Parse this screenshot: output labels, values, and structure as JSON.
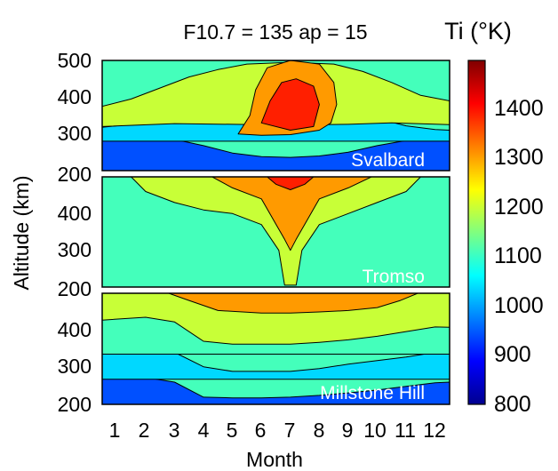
{
  "chart_data": {
    "type": "heatmap",
    "title": "F10.7 = 135  ap = 15",
    "colorbar_label": "Ti (°K)",
    "colorbar_ticks": [
      "800",
      "900",
      "1000",
      "1100",
      "1200",
      "1300",
      "1400"
    ],
    "colorbar_range": [
      800,
      1490
    ],
    "xlabel": "Month",
    "ylabel": "Altitude (km)",
    "x_ticks": [
      "1",
      "2",
      "3",
      "4",
      "5",
      "6",
      "7",
      "8",
      "9",
      "10",
      "11",
      "12"
    ],
    "xlim": [
      0.5,
      12.5
    ],
    "level_colors": [
      "#00008f",
      "#0050ff",
      "#00d8ff",
      "#44ffbb",
      "#c8ff37",
      "#ff9a00",
      "#ff1f00"
    ],
    "panels": [
      {
        "station": "Svalbard",
        "y_ticks": [
          "500",
          "400",
          "300",
          "200"
        ],
        "ylim": [
          200,
          500
        ],
        "bands": [
          {
            "level": "#0050ff",
            "points": [
              [
                0.5,
                200
              ],
              [
                0.5,
                295
              ],
              [
                2,
                290
              ],
              [
                3,
                285
              ],
              [
                4,
                268
              ],
              [
                5,
                248
              ],
              [
                6,
                238
              ],
              [
                7,
                236
              ],
              [
                8,
                240
              ],
              [
                9,
                250
              ],
              [
                10,
                268
              ],
              [
                11,
                282
              ],
              [
                12,
                288
              ],
              [
                12.5,
                290
              ],
              [
                12.5,
                200
              ]
            ]
          },
          {
            "level": "#00d8ff",
            "points": [
              [
                0.5,
                280
              ],
              [
                0.5,
                318
              ],
              [
                2,
                330
              ],
              [
                3,
                345
              ],
              [
                4,
                352
              ],
              [
                5,
                350
              ],
              [
                6,
                345
              ],
              [
                7,
                342
              ],
              [
                8,
                345
              ],
              [
                9,
                350
              ],
              [
                10,
                342
              ],
              [
                11,
                322
              ],
              [
                12,
                312
              ],
              [
                12.5,
                310
              ],
              [
                12.5,
                280
              ]
            ]
          },
          {
            "level": "#c8ff37",
            "points": [
              [
                0.5,
                375
              ],
              [
                1.5,
                395
              ],
              [
                2.5,
                425
              ],
              [
                3.5,
                455
              ],
              [
                4.5,
                475
              ],
              [
                5.5,
                490
              ],
              [
                7,
                495
              ],
              [
                8.5,
                490
              ],
              [
                9.5,
                470
              ],
              [
                10.5,
                440
              ],
              [
                11.5,
                405
              ],
              [
                12.5,
                390
              ],
              [
                12.5,
                325
              ],
              [
                10.5,
                330
              ],
              [
                9,
                326
              ],
              [
                7,
                324
              ],
              [
                5,
                326
              ],
              [
                3,
                328
              ],
              [
                0.5,
                320
              ]
            ]
          },
          {
            "level": "#ff9a00",
            "points": [
              [
                5.2,
                300
              ],
              [
                5.6,
                350
              ],
              [
                5.8,
                420
              ],
              [
                6.2,
                480
              ],
              [
                7,
                500
              ],
              [
                8,
                490
              ],
              [
                8.5,
                440
              ],
              [
                8.6,
                380
              ],
              [
                8.4,
                330
              ],
              [
                8,
                310
              ],
              [
                7,
                298
              ],
              [
                6,
                296
              ]
            ]
          },
          {
            "level": "#ff1f00",
            "points": [
              [
                6,
                330
              ],
              [
                6.3,
                390
              ],
              [
                6.7,
                440
              ],
              [
                7.2,
                450
              ],
              [
                7.8,
                430
              ],
              [
                8,
                380
              ],
              [
                7.8,
                320
              ],
              [
                7,
                310
              ]
            ]
          }
        ]
      },
      {
        "station": "Tromso",
        "y_ticks": [
          "400",
          "300",
          "200"
        ],
        "ylim": [
          200,
          500
        ],
        "bands": [
          {
            "level": "#44ffbb",
            "points": [
              [
                0.5,
                200
              ],
              [
                0.5,
                500
              ],
              [
                12.5,
                500
              ],
              [
                12.5,
                200
              ]
            ]
          },
          {
            "level": "#c8ff37",
            "points": [
              [
                1.5,
                500
              ],
              [
                2,
                460
              ],
              [
                3,
                430
              ],
              [
                4,
                410
              ],
              [
                5,
                400
              ],
              [
                6,
                370
              ],
              [
                6.6,
                300
              ],
              [
                6.8,
                205
              ],
              [
                7.2,
                205
              ],
              [
                7.4,
                300
              ],
              [
                8,
                370
              ],
              [
                9,
                400
              ],
              [
                10,
                430
              ],
              [
                11,
                460
              ],
              [
                11.5,
                500
              ]
            ]
          },
          {
            "level": "#ff9a00",
            "points": [
              [
                4.3,
                500
              ],
              [
                5,
                470
              ],
              [
                6,
                440
              ],
              [
                6.8,
                330
              ],
              [
                7,
                300
              ],
              [
                7.2,
                330
              ],
              [
                8,
                440
              ],
              [
                9,
                470
              ],
              [
                9.8,
                500
              ]
            ]
          },
          {
            "level": "#ff1f00",
            "points": [
              [
                6.2,
                500
              ],
              [
                6.5,
                480
              ],
              [
                7,
                465
              ],
              [
                7.5,
                480
              ],
              [
                7.8,
                500
              ]
            ]
          }
        ]
      },
      {
        "station": "Millstone Hill",
        "y_ticks": [
          "400",
          "300",
          "200"
        ],
        "ylim": [
          200,
          510
        ],
        "bands": [
          {
            "level": "#0050ff",
            "points": [
              [
                0.5,
                200
              ],
              [
                0.5,
                280
              ],
              [
                2,
                275
              ],
              [
                3,
                262
              ],
              [
                4,
                220
              ],
              [
                5,
                218
              ],
              [
                6,
                218
              ],
              [
                7,
                220
              ],
              [
                8,
                225
              ],
              [
                9,
                232
              ],
              [
                10,
                240
              ],
              [
                11,
                250
              ],
              [
                12,
                260
              ],
              [
                12.5,
                262
              ],
              [
                12.5,
                200
              ]
            ]
          },
          {
            "level": "#00d8ff",
            "points": [
              [
                0.5,
                270
              ],
              [
                0.5,
                350
              ],
              [
                2,
                355
              ],
              [
                3,
                345
              ],
              [
                4,
                305
              ],
              [
                5,
                292
              ],
              [
                7,
                292
              ],
              [
                8,
                300
              ],
              [
                9,
                312
              ],
              [
                10,
                322
              ],
              [
                11,
                332
              ],
              [
                12,
                345
              ],
              [
                12.5,
                348
              ],
              [
                12.5,
                270
              ]
            ]
          },
          {
            "level": "#44ffbb",
            "points": [
              [
                0.5,
                340
              ],
              [
                0.5,
                440
              ],
              [
                2,
                445
              ],
              [
                3,
                432
              ],
              [
                4,
                378
              ],
              [
                5,
                370
              ],
              [
                7,
                370
              ],
              [
                8,
                375
              ],
              [
                9,
                382
              ],
              [
                10,
                392
              ],
              [
                11,
                405
              ],
              [
                12,
                418
              ],
              [
                12.5,
                420
              ],
              [
                12.5,
                340
              ]
            ]
          },
          {
            "level": "#c8ff37",
            "points": [
              [
                0.5,
                435
              ],
              [
                0.5,
                510
              ],
              [
                12.5,
                510
              ],
              [
                12.5,
                415
              ],
              [
                12,
                416
              ],
              [
                11,
                403
              ],
              [
                10,
                390
              ],
              [
                9,
                380
              ],
              [
                8,
                373
              ],
              [
                7,
                368
              ],
              [
                5,
                368
              ],
              [
                4,
                376
              ],
              [
                3,
                430
              ],
              [
                2,
                443
              ]
            ]
          },
          {
            "level": "#ff9a00",
            "points": [
              [
                2.8,
                510
              ],
              [
                3.5,
                490
              ],
              [
                4.5,
                462
              ],
              [
                6,
                455
              ],
              [
                7,
                455
              ],
              [
                8,
                458
              ],
              [
                9,
                462
              ],
              [
                10,
                470
              ],
              [
                10.8,
                490
              ],
              [
                11.4,
                510
              ]
            ]
          }
        ]
      }
    ]
  }
}
